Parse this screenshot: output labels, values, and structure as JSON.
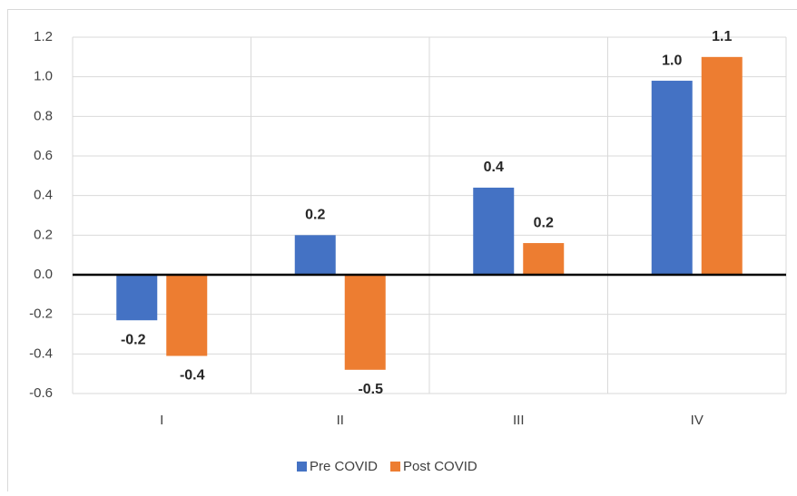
{
  "chart_data": {
    "type": "bar",
    "categories": [
      "I",
      "II",
      "III",
      "IV"
    ],
    "series": [
      {
        "name": "Pre COVID",
        "color": "#4472c4",
        "values": [
          -0.23,
          0.2,
          0.44,
          0.98
        ],
        "value_labels": [
          "-0.2",
          "0.2",
          "0.4",
          "1.0"
        ]
      },
      {
        "name": "Post COVID",
        "color": "#ed7d31",
        "values": [
          -0.41,
          -0.48,
          0.16,
          1.1
        ],
        "value_labels": [
          "-0.4",
          "-0.5",
          "0.2",
          "1.1"
        ]
      }
    ],
    "ylim": [
      -0.6,
      1.2
    ],
    "yticks": [
      -0.6,
      -0.4,
      -0.2,
      {
        "value": 0,
        "label": "0.0"
      },
      0.2,
      0.4,
      0.6,
      0.8,
      {
        "value": 1,
        "label": "1.0"
      },
      1.2
    ],
    "grid": true,
    "legend": "bottom"
  }
}
